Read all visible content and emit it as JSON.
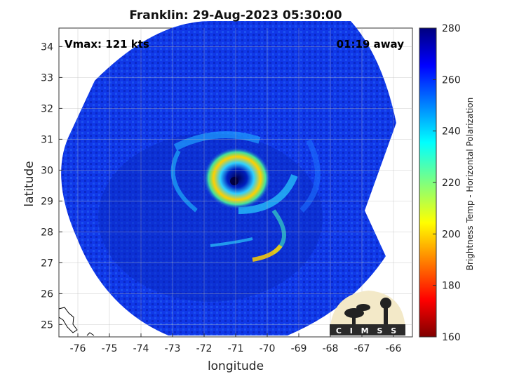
{
  "title": "Franklin: 29-Aug-2023 05:30:00",
  "annotations": {
    "vmax": "Vmax: 121 kts",
    "time_away": "01:19 away"
  },
  "xlabel": "longitude",
  "ylabel": "latitude",
  "colorbar": {
    "label": "Brightness Temp - Horizontal Polarization",
    "ticks": [
      "160",
      "180",
      "200",
      "220",
      "240",
      "260",
      "280"
    ],
    "range": [
      160,
      280
    ],
    "colormap": "jet"
  },
  "logo_text": "CIMSS",
  "chart_data": {
    "type": "heatmap",
    "x_ticks": [
      "-76",
      "-75",
      "-74",
      "-73",
      "-72",
      "-71",
      "-70",
      "-69",
      "-68",
      "-67",
      "-66"
    ],
    "y_ticks": [
      "25",
      "26",
      "27",
      "28",
      "29",
      "30",
      "31",
      "32",
      "33",
      "34"
    ],
    "xlim": [
      -76.6,
      -65.4
    ],
    "ylim": [
      24.6,
      34.6
    ],
    "storm_center": {
      "lon": -71.0,
      "lat": 29.6
    },
    "grid": true,
    "colors": {
      "background": "#1030e0",
      "ring": "#ffd000",
      "eye": "#000060"
    }
  }
}
